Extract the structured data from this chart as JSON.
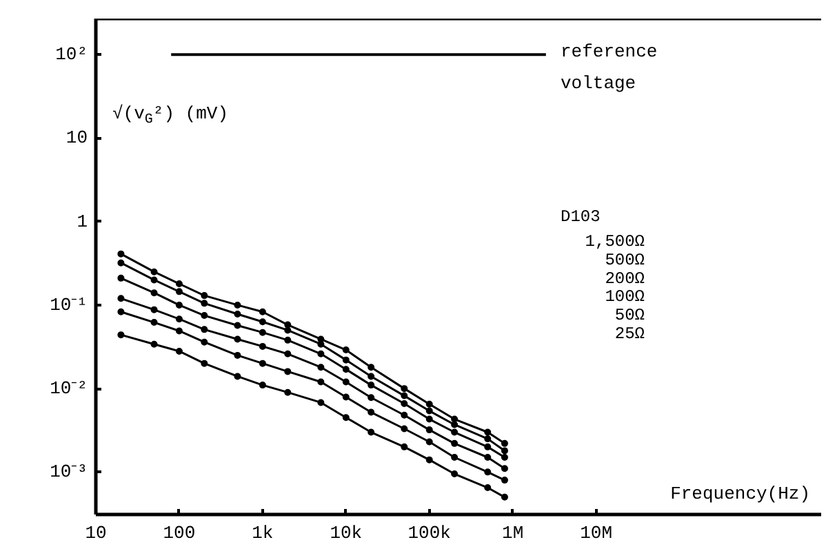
{
  "chart_data": {
    "type": "line",
    "ylabel": "√(v$_{G}$²) (mV)",
    "xlabel": "Frequency(Hz)",
    "log": "xy",
    "grid": false,
    "marker": "circle",
    "line_style": "solid",
    "x": [
      20,
      50,
      100,
      200,
      500,
      1000,
      2000,
      5000,
      10000,
      20000,
      50000,
      100000,
      200000,
      500000,
      800000
    ],
    "xlim": [
      10,
      5000000000
    ],
    "ylim": [
      0.00031,
      270
    ],
    "xticks": [
      10,
      100,
      {
        "value": 1000,
        "label": "1k"
      },
      {
        "value": 10000,
        "label": "10k"
      },
      {
        "value": 100000,
        "label": "100k"
      },
      {
        "value": 1000000,
        "label": "1M"
      },
      {
        "value": 10000000,
        "label": "10M"
      }
    ],
    "yticks": [
      {
        "value": 0.001,
        "label": "10⁻³"
      },
      {
        "value": 0.01,
        "label": "10⁻²"
      },
      {
        "value": 0.1,
        "label": "10⁻¹"
      },
      1,
      10,
      {
        "value": 100,
        "label": "10²"
      }
    ],
    "annotations": [
      "D103"
    ],
    "series": [
      {
        "name": "reference voltage",
        "color": "#000000",
        "x": [
          80,
          2500000
        ],
        "values": [
          100,
          100
        ],
        "marker": "none"
      },
      {
        "name": "1,500Ω",
        "color": "#000000",
        "values": [
          0.41,
          0.25,
          0.18,
          0.13,
          0.1,
          0.083,
          0.058,
          0.039,
          0.029,
          0.018,
          0.01,
          0.0065,
          0.0043,
          0.003,
          0.0022
        ]
      },
      {
        "name": "500Ω",
        "color": "#000000",
        "values": [
          0.32,
          0.2,
          0.145,
          0.105,
          0.078,
          0.063,
          0.05,
          0.034,
          0.022,
          0.014,
          0.0082,
          0.0054,
          0.0037,
          0.0025,
          0.0018
        ]
      },
      {
        "name": "200Ω",
        "color": "#000000",
        "values": [
          0.21,
          0.14,
          0.1,
          0.075,
          0.057,
          0.047,
          0.038,
          0.026,
          0.017,
          0.011,
          0.0066,
          0.0043,
          0.003,
          0.002,
          0.0015
        ]
      },
      {
        "name": "100Ω",
        "color": "#000000",
        "values": [
          0.12,
          0.088,
          0.068,
          0.051,
          0.039,
          0.032,
          0.026,
          0.018,
          0.012,
          0.0078,
          0.0048,
          0.0032,
          0.0022,
          0.0015,
          0.0011
        ]
      },
      {
        "name": "50Ω",
        "color": "#000000",
        "values": [
          0.083,
          0.062,
          0.049,
          0.036,
          0.025,
          0.02,
          0.016,
          0.012,
          0.0079,
          0.0052,
          0.0033,
          0.0023,
          0.0015,
          0.001,
          0.0008
        ]
      },
      {
        "name": "25Ω",
        "color": "#000000",
        "values": [
          0.044,
          0.034,
          0.028,
          0.02,
          0.014,
          0.011,
          0.009,
          0.0068,
          0.0045,
          0.003,
          0.002,
          0.0014,
          0.00095,
          0.00065,
          0.0005
        ]
      }
    ]
  }
}
